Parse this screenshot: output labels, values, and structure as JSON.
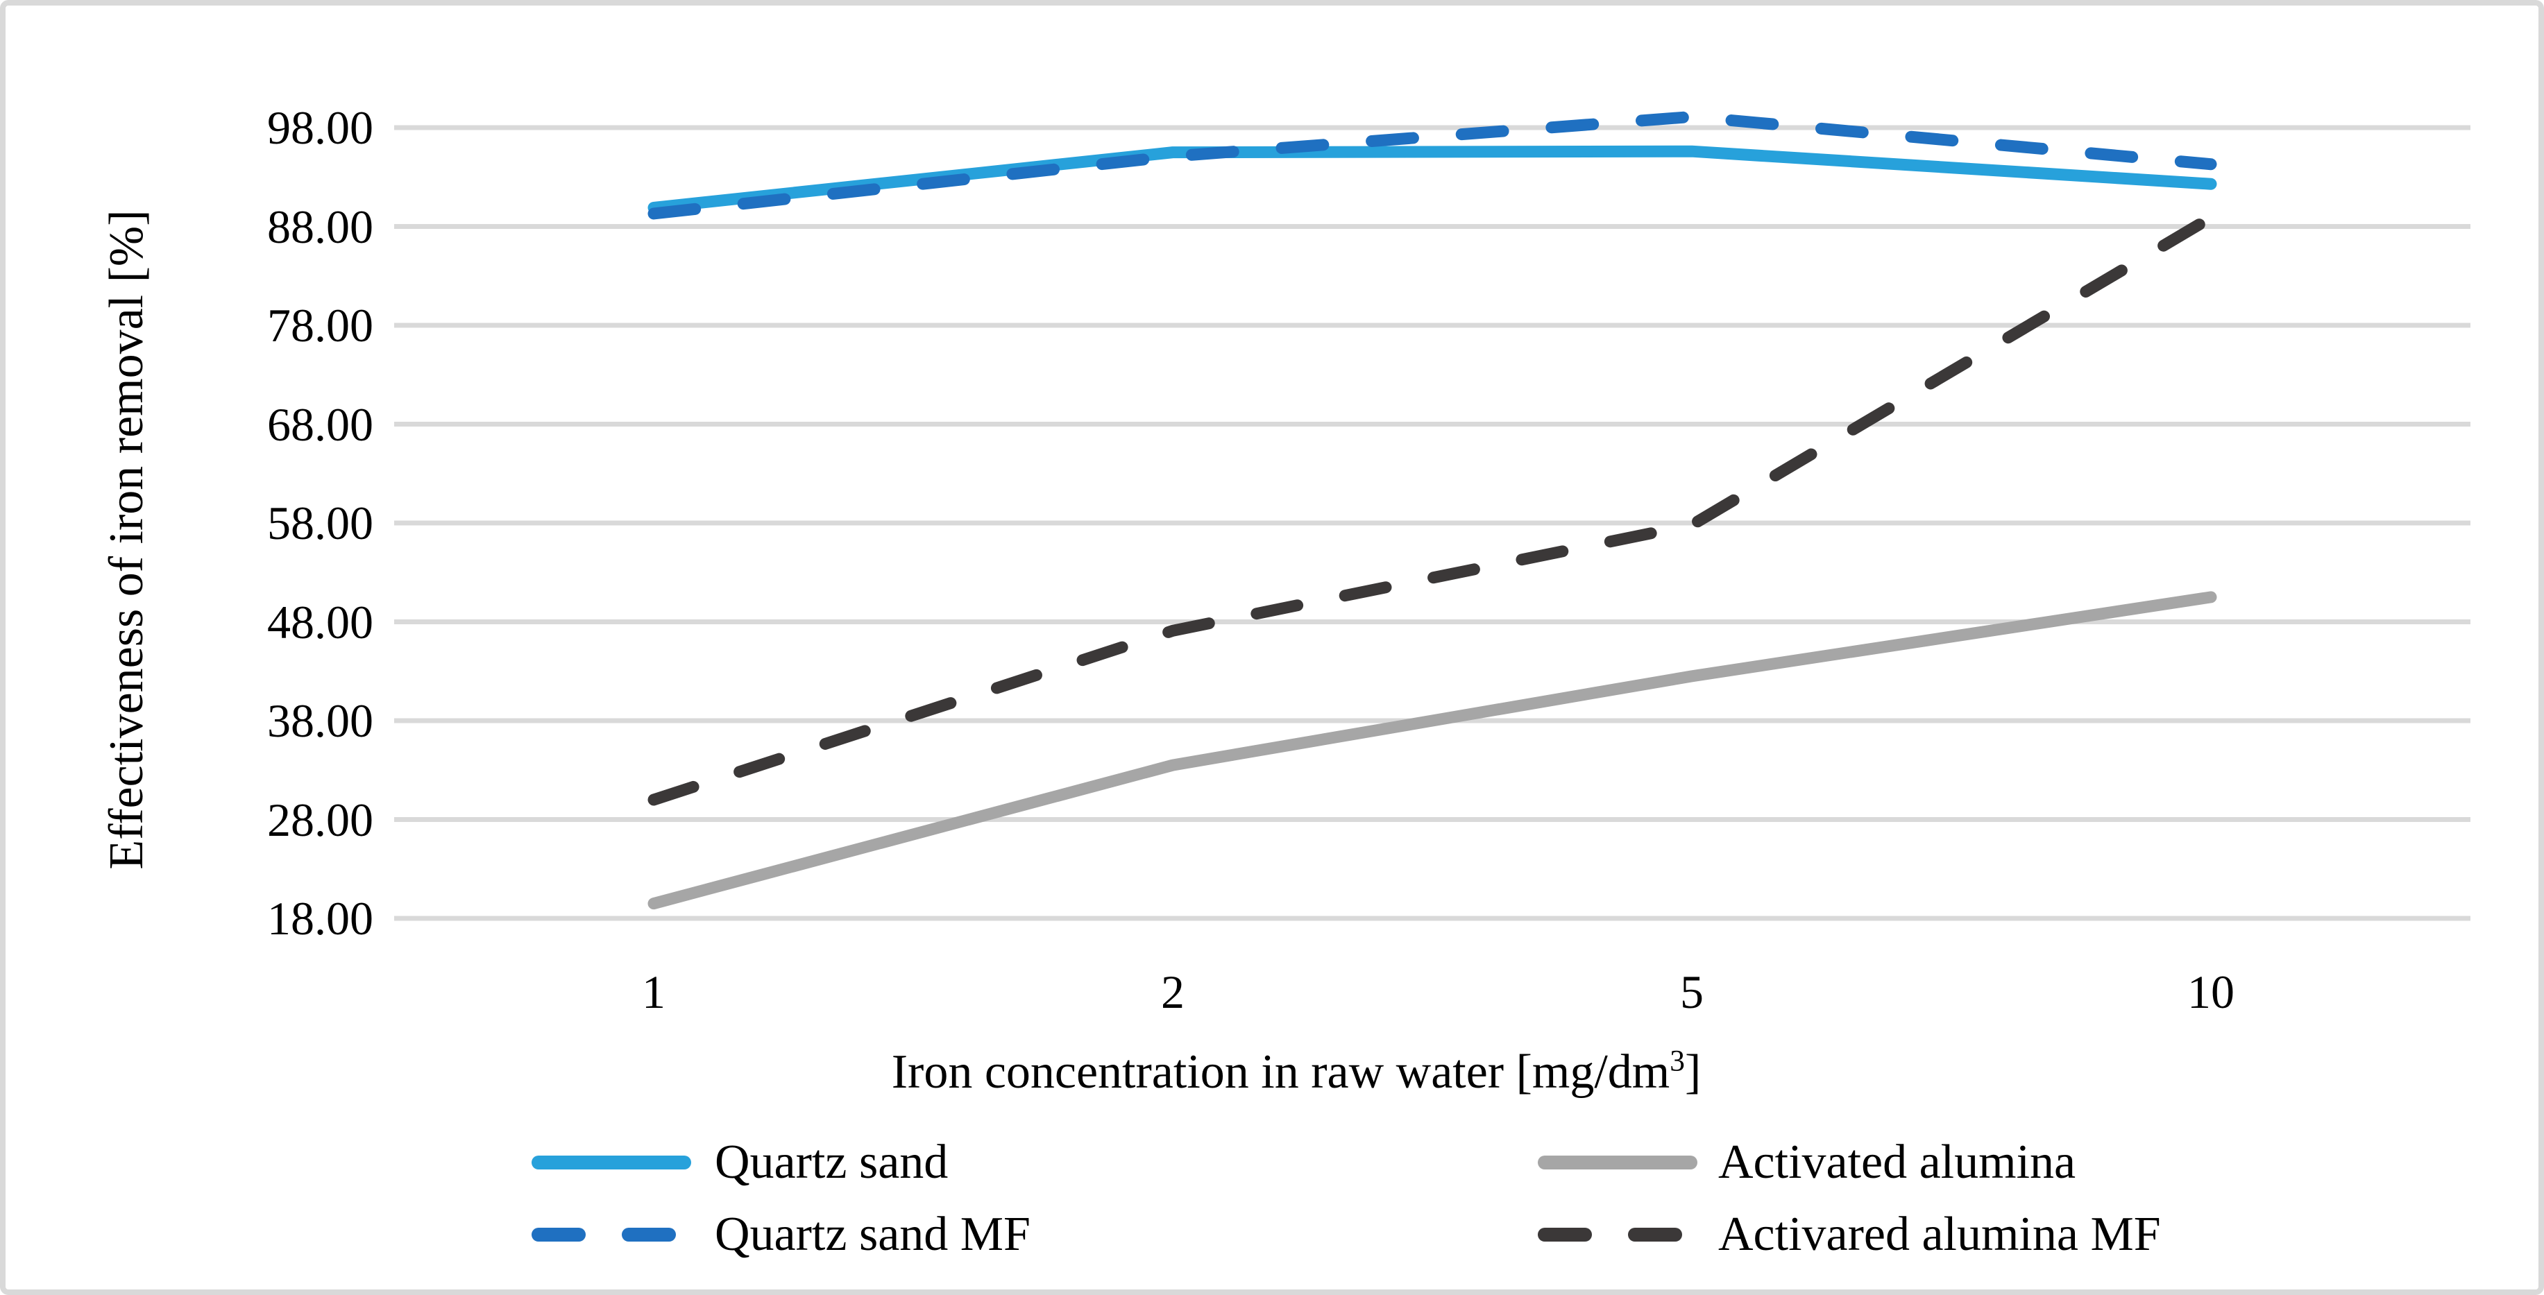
{
  "figure": {
    "background": "#FFFFFF",
    "border_color": "#D9D9D9",
    "gridline_color": "#D9D9D9",
    "text_color": "#000000"
  },
  "chart_data": {
    "type": "line",
    "title": "",
    "xlabel": "Iron concentration in raw water [mg/dm3]",
    "ylabel": "Effectiveness of iron removal [%]",
    "categories": [
      "1",
      "2",
      "5",
      "10"
    ],
    "x_axis_type": "categorical",
    "y_ticks": [
      98,
      88,
      78,
      68,
      58,
      48,
      38,
      28,
      18
    ],
    "y_tick_labels": [
      "98.00",
      "88.00",
      "78.00",
      "68.00",
      "58.00",
      "48.00",
      "38.00",
      "28.00",
      "18.00"
    ],
    "ylim": [
      13,
      103
    ],
    "grid": "horizontal",
    "legend_position": "bottom",
    "series": [
      {
        "name": "Quartz sand",
        "color": "#27A1DB",
        "style": "solid",
        "values": [
          89.9,
          95.5,
          95.6,
          92.3
        ]
      },
      {
        "name": "Quartz sand MF",
        "color": "#1F70C1",
        "style": "dashed",
        "values": [
          89.3,
          95.1,
          99.1,
          94.3
        ]
      },
      {
        "name": "Activated alumina",
        "color": "#A6A6A6",
        "style": "solid",
        "values": [
          19.5,
          33.5,
          42.5,
          50.5
        ]
      },
      {
        "name": "Activared alumina MF",
        "color": "#3B3838",
        "style": "dashed",
        "values": [
          30.0,
          47.1,
          57.8,
          88.9
        ]
      }
    ]
  },
  "xlabel_display": {
    "prefix": "Iron concentration in raw water [mg/dm",
    "sup": "3",
    "suffix": "]"
  }
}
